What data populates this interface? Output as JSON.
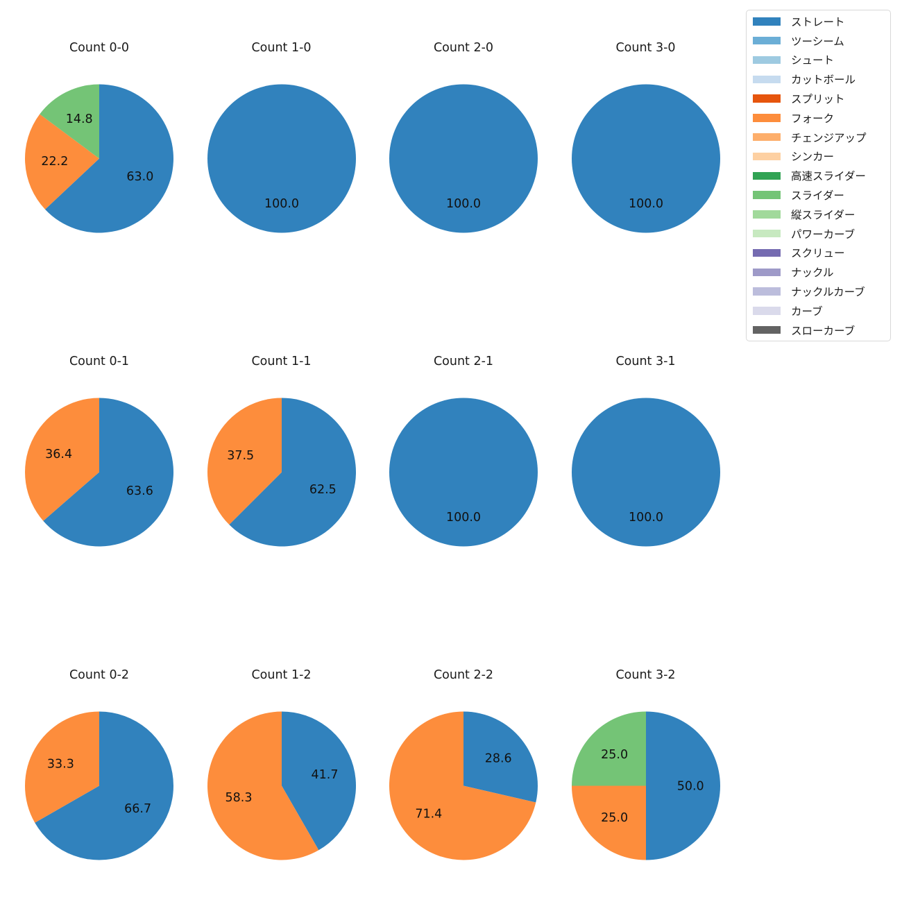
{
  "figure": {
    "background": "#ffffff"
  },
  "chart_data": {
    "type": "pie",
    "layout": "3 rows x 4 columns grid of pie charts showing pitch-type percentage by ball-strike count",
    "style": {
      "start_angle_deg": 90,
      "clockwise": true,
      "label_distance": 0.6,
      "grid": false,
      "accent_blue": "#3182bd",
      "accent_orange": "#fd8d3c",
      "accent_green": "#74c476"
    },
    "pies": [
      {
        "title": "Count 0-0",
        "slices": [
          {
            "label": "ストレート",
            "value": 63.0,
            "pct": "63.0",
            "color": "#3182bd"
          },
          {
            "label": "フォーク",
            "value": 22.2,
            "pct": "22.2",
            "color": "#fd8d3c"
          },
          {
            "label": "スライダー",
            "value": 14.8,
            "pct": "14.8",
            "color": "#74c476"
          }
        ]
      },
      {
        "title": "Count 1-0",
        "slices": [
          {
            "label": "ストレート",
            "value": 100.0,
            "pct": "100.0",
            "color": "#3182bd"
          }
        ]
      },
      {
        "title": "Count 2-0",
        "slices": [
          {
            "label": "ストレート",
            "value": 100.0,
            "pct": "100.0",
            "color": "#3182bd"
          }
        ]
      },
      {
        "title": "Count 3-0",
        "slices": [
          {
            "label": "ストレート",
            "value": 100.0,
            "pct": "100.0",
            "color": "#3182bd"
          }
        ]
      },
      {
        "title": "Count 0-1",
        "slices": [
          {
            "label": "ストレート",
            "value": 63.6,
            "pct": "63.6",
            "color": "#3182bd"
          },
          {
            "label": "フォーク",
            "value": 36.4,
            "pct": "36.4",
            "color": "#fd8d3c"
          }
        ]
      },
      {
        "title": "Count 1-1",
        "slices": [
          {
            "label": "ストレート",
            "value": 62.5,
            "pct": "62.5",
            "color": "#3182bd"
          },
          {
            "label": "フォーク",
            "value": 37.5,
            "pct": "37.5",
            "color": "#fd8d3c"
          }
        ]
      },
      {
        "title": "Count 2-1",
        "slices": [
          {
            "label": "ストレート",
            "value": 100.0,
            "pct": "100.0",
            "color": "#3182bd"
          }
        ]
      },
      {
        "title": "Count 3-1",
        "slices": [
          {
            "label": "ストレート",
            "value": 100.0,
            "pct": "100.0",
            "color": "#3182bd"
          }
        ]
      },
      {
        "title": "Count 0-2",
        "slices": [
          {
            "label": "ストレート",
            "value": 66.7,
            "pct": "66.7",
            "color": "#3182bd"
          },
          {
            "label": "フォーク",
            "value": 33.3,
            "pct": "33.3",
            "color": "#fd8d3c"
          }
        ]
      },
      {
        "title": "Count 1-2",
        "slices": [
          {
            "label": "ストレート",
            "value": 41.7,
            "pct": "41.7",
            "color": "#3182bd"
          },
          {
            "label": "フォーク",
            "value": 58.3,
            "pct": "58.3",
            "color": "#fd8d3c"
          }
        ]
      },
      {
        "title": "Count 2-2",
        "slices": [
          {
            "label": "ストレート",
            "value": 28.6,
            "pct": "28.6",
            "color": "#3182bd"
          },
          {
            "label": "フォーク",
            "value": 71.4,
            "pct": "71.4",
            "color": "#fd8d3c"
          }
        ]
      },
      {
        "title": "Count 3-2",
        "slices": [
          {
            "label": "ストレート",
            "value": 50.0,
            "pct": "50.0",
            "color": "#3182bd"
          },
          {
            "label": "フォーク",
            "value": 25.0,
            "pct": "25.0",
            "color": "#fd8d3c"
          },
          {
            "label": "スライダー",
            "value": 25.0,
            "pct": "25.0",
            "color": "#74c476"
          }
        ]
      }
    ],
    "legend": {
      "position": "upper-right",
      "entries": [
        {
          "label": "ストレート",
          "color": "#3182bd"
        },
        {
          "label": "ツーシーム",
          "color": "#6baed6"
        },
        {
          "label": "シュート",
          "color": "#9ecae1"
        },
        {
          "label": "カットボール",
          "color": "#c6dbef"
        },
        {
          "label": "スプリット",
          "color": "#e6550d"
        },
        {
          "label": "フォーク",
          "color": "#fd8d3c"
        },
        {
          "label": "チェンジアップ",
          "color": "#fdae6b"
        },
        {
          "label": "シンカー",
          "color": "#fdd0a2"
        },
        {
          "label": "高速スライダー",
          "color": "#31a354"
        },
        {
          "label": "スライダー",
          "color": "#74c476"
        },
        {
          "label": "縦スライダー",
          "color": "#a1d99b"
        },
        {
          "label": "パワーカーブ",
          "color": "#c7e9c0"
        },
        {
          "label": "スクリュー",
          "color": "#756bb1"
        },
        {
          "label": "ナックル",
          "color": "#9e9ac8"
        },
        {
          "label": "ナックルカーブ",
          "color": "#bcbddc"
        },
        {
          "label": "カーブ",
          "color": "#dadaeb"
        },
        {
          "label": "スローカーブ",
          "color": "#636363"
        }
      ]
    }
  }
}
